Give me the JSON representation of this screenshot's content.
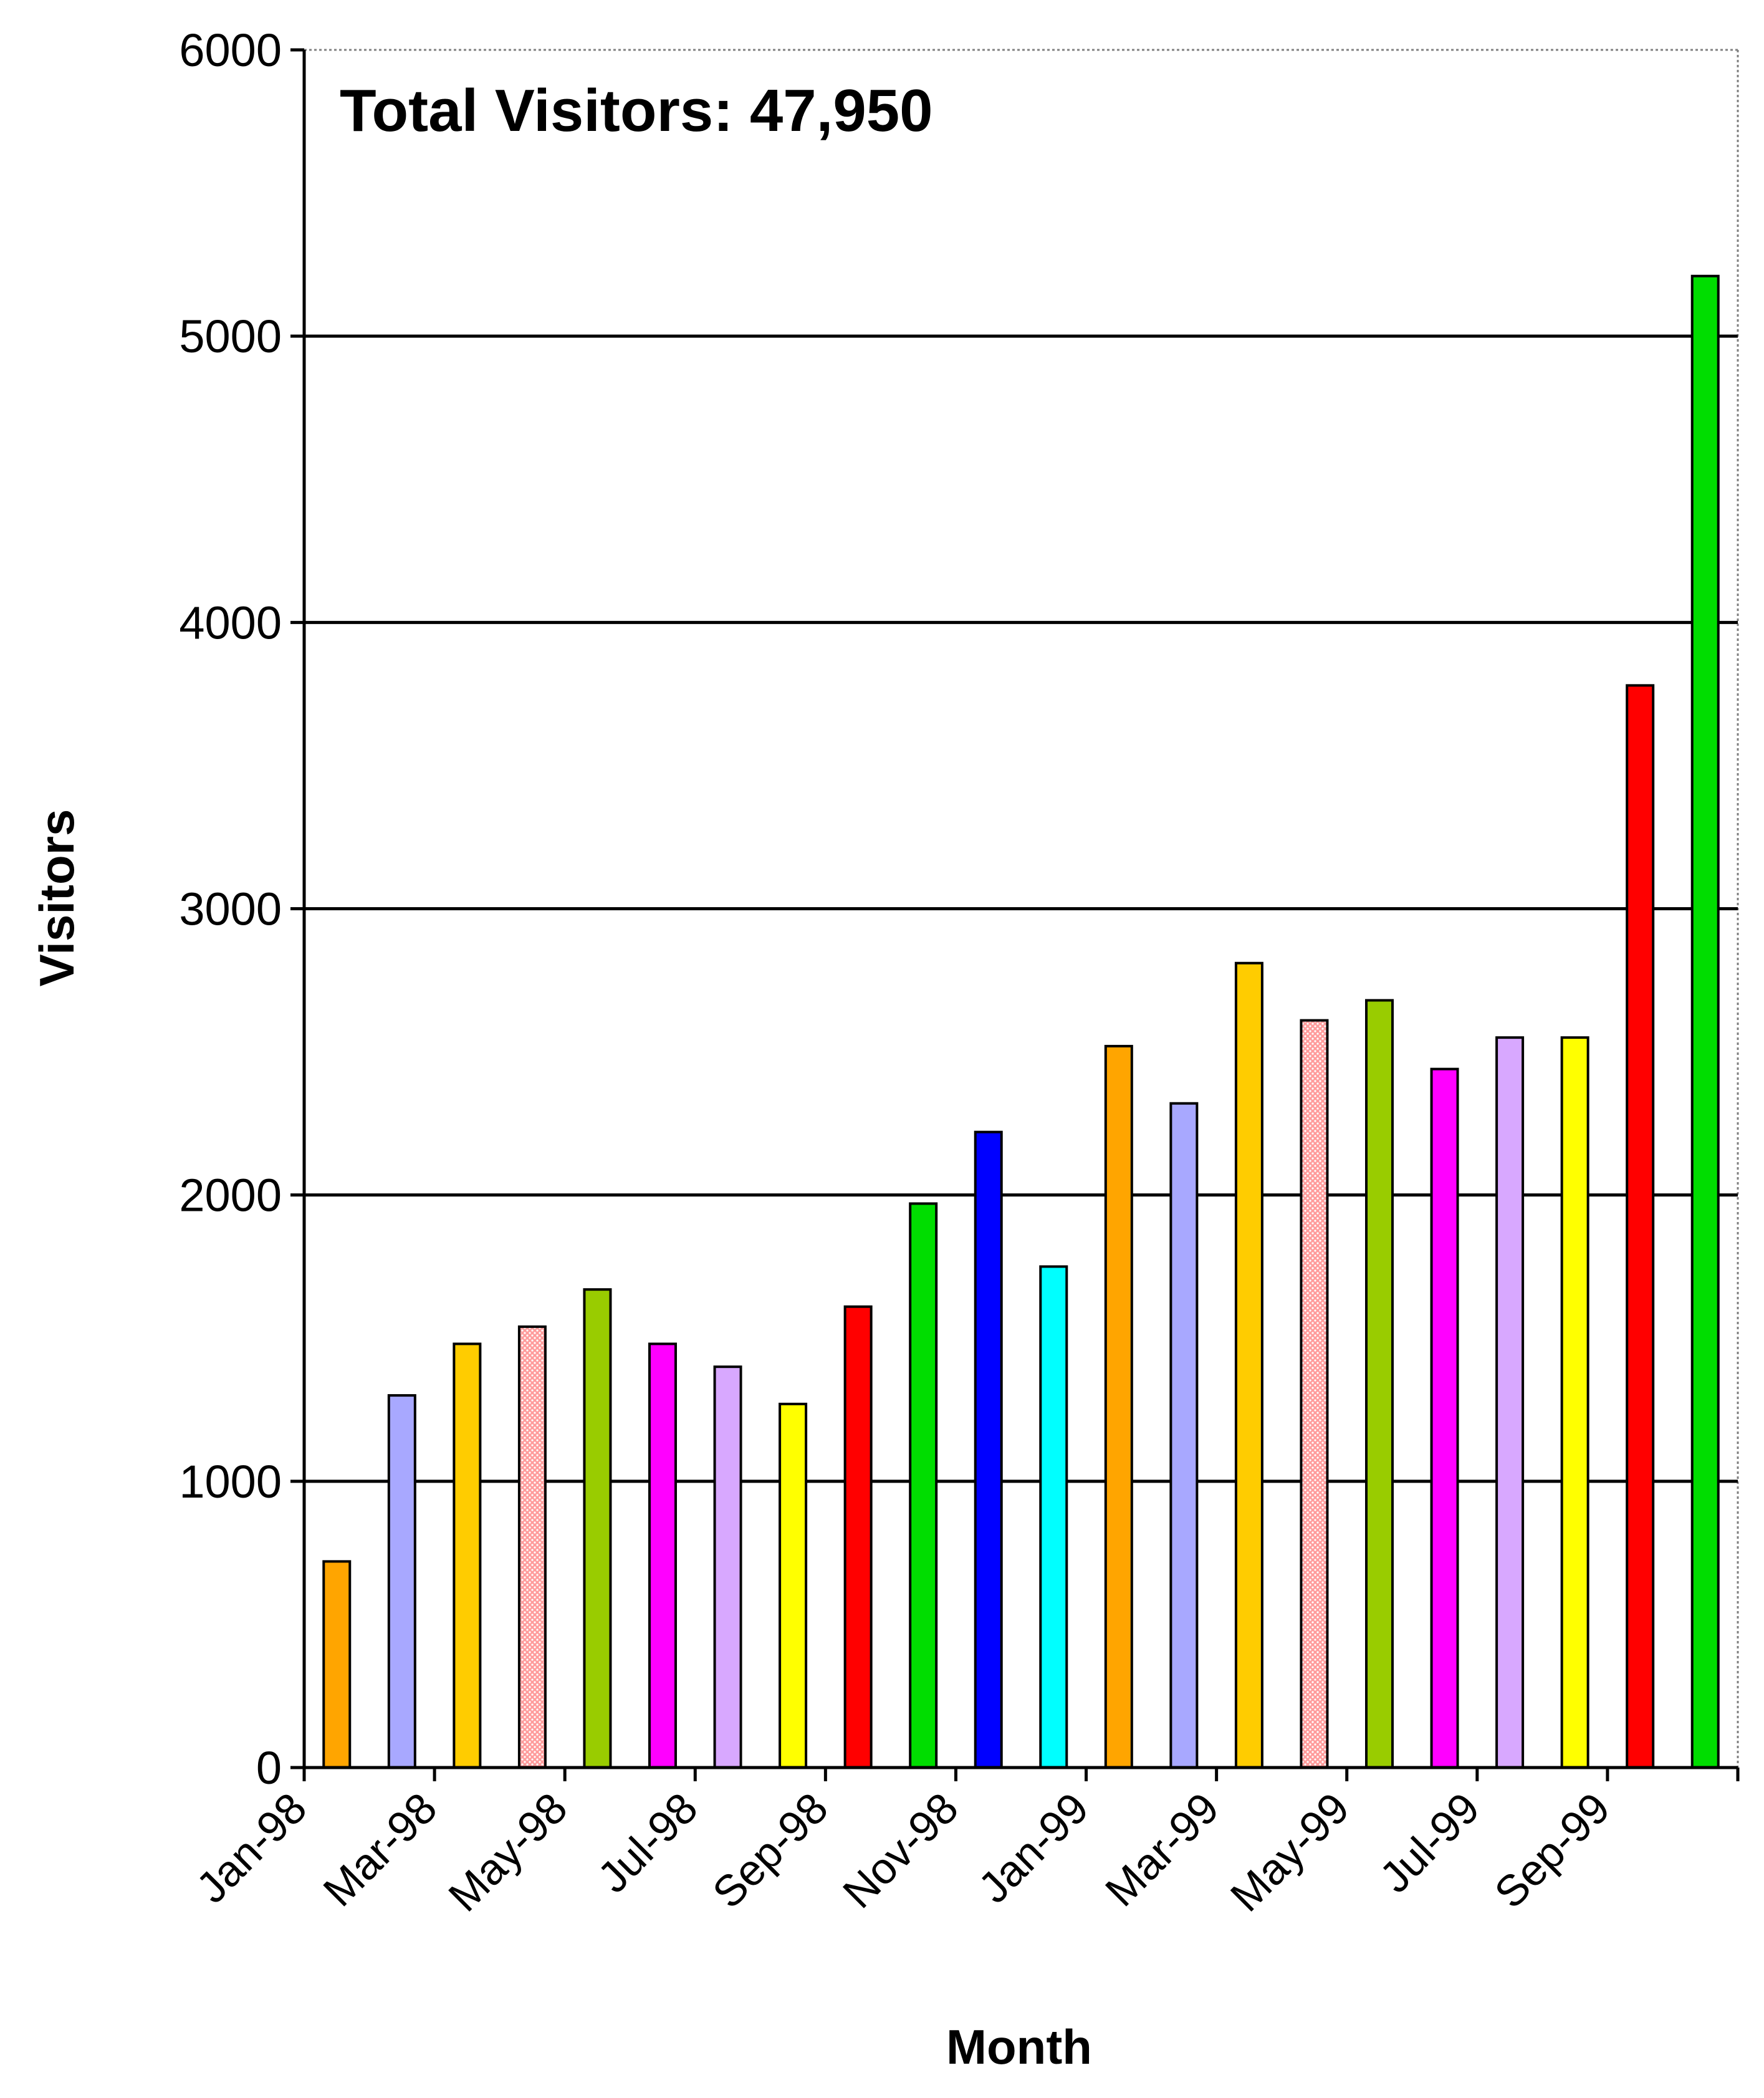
{
  "chart_data": {
    "type": "bar",
    "title": "Total Visitors: 47,950",
    "xlabel": "Month",
    "ylabel": "Visitors",
    "ylim": [
      0,
      6000
    ],
    "yticks": [
      "0",
      "1000",
      "2000",
      "3000",
      "4000",
      "5000",
      "6000"
    ],
    "grid": true,
    "legend": "none",
    "tick_labels": [
      "Jan-98",
      "Mar-98",
      "May-98",
      "Jul-98",
      "Sep-98",
      "Nov-98",
      "Jan-99",
      "Mar-99",
      "May-99",
      "Jul-99",
      "Sep-99"
    ],
    "categories": [
      "Jan-98",
      "Feb-98",
      "Mar-98",
      "Apr-98",
      "May-98",
      "Jun-98",
      "Jul-98",
      "Aug-98",
      "Sep-98",
      "Oct-98",
      "Nov-98",
      "Dec-98",
      "Jan-99",
      "Feb-99",
      "Mar-99",
      "Apr-99",
      "May-99",
      "Jun-99",
      "Jul-99",
      "Aug-99",
      "Sep-99",
      "Oct-99"
    ],
    "values": [
      720,
      1300,
      1480,
      1540,
      1670,
      1480,
      1400,
      1270,
      1610,
      1970,
      2220,
      1750,
      2520,
      2320,
      2810,
      2610,
      2680,
      2440,
      2550,
      2550,
      3780,
      5210
    ],
    "colors": [
      "#ffa500",
      "#a8a8ff",
      "#ffcc00",
      "#ff9c9c",
      "#99cc00",
      "#ff00ff",
      "#d8a8ff",
      "#ffff00",
      "#ff0000",
      "#00dd00",
      "#0000ff",
      "#00ffff",
      "#ffa500",
      "#a8a8ff",
      "#ffcc00",
      "#ff9c9c",
      "#99cc00",
      "#ff00ff",
      "#d8a8ff",
      "#ffff00",
      "#ff0000",
      "#00dd00"
    ]
  }
}
